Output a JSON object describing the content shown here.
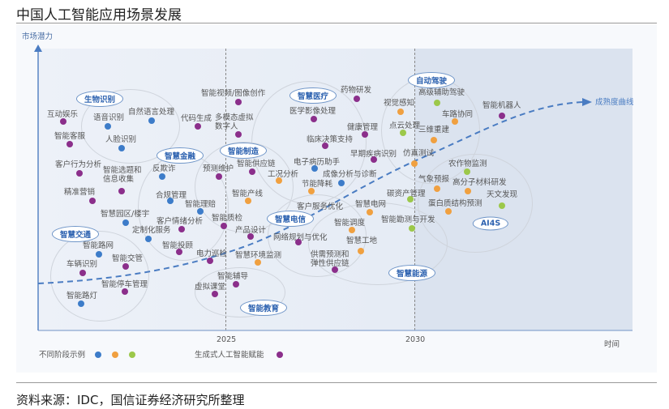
{
  "title": "中国人工智能应用场景发展",
  "source": "资料来源：IDC，国信证券经济研究所整理",
  "axes": {
    "y_label": "市场潜力",
    "x_label": "时间",
    "ticks": [
      "2025",
      "2030"
    ],
    "curve_label": "成熟度曲线"
  },
  "colors": {
    "blue": "#3d7cc9",
    "orange": "#f0a040",
    "green": "#9cc84a",
    "purple": "#8b2f8b",
    "curve": "#4a7cc2"
  },
  "legend": {
    "stages_label": "不同阶段示例",
    "stage_colors": [
      "blue",
      "orange",
      "green"
    ],
    "genai_label": "生成式人工智能赋能",
    "genai_color": "purple"
  },
  "categories": [
    "生物识别",
    "智慧金融",
    "智能制造",
    "智慧医疗",
    "自动驾驶",
    "智慧电信",
    "智慧交通",
    "智能教育",
    "智慧能源",
    "AI4S"
  ],
  "items": [
    {
      "label": "互动娱乐",
      "color": "purple"
    },
    {
      "label": "语音识别",
      "color": "blue"
    },
    {
      "label": "自然语言处理",
      "color": "blue"
    },
    {
      "label": "代码生成",
      "color": "purple"
    },
    {
      "label": "智能客服",
      "color": "purple"
    },
    {
      "label": "人脸识别",
      "color": "blue"
    },
    {
      "label": "客户行为分析",
      "color": "purple"
    },
    {
      "label": "智能选题和\n信息收集",
      "color": "purple"
    },
    {
      "label": "反欺诈",
      "color": "blue"
    },
    {
      "label": "预测维护",
      "color": "purple"
    },
    {
      "label": "智能视频/图像创作",
      "color": "purple"
    },
    {
      "label": "多模态虚拟\n数字人",
      "color": "purple"
    },
    {
      "label": "精准营销",
      "color": "purple"
    },
    {
      "label": "合规管理",
      "color": "blue"
    },
    {
      "label": "智能理赔",
      "color": "blue"
    },
    {
      "label": "智慧园区/楼宇",
      "color": "blue"
    },
    {
      "label": "客户情绪分析",
      "color": "purple"
    },
    {
      "label": "定制化服务",
      "color": "blue"
    },
    {
      "label": "智能投顾",
      "color": "purple"
    },
    {
      "label": "智能质检",
      "color": "purple"
    },
    {
      "label": "产品设计",
      "color": "purple"
    },
    {
      "label": "电力巡检",
      "color": "purple"
    },
    {
      "label": "智慧环境监测",
      "color": "orange"
    },
    {
      "label": "网络规划与优化",
      "color": "purple"
    },
    {
      "label": "智能路网",
      "color": "blue"
    },
    {
      "label": "智能交管",
      "color": "purple"
    },
    {
      "label": "车辆识别",
      "color": "purple"
    },
    {
      "label": "智能停车管理",
      "color": "purple"
    },
    {
      "label": "智能路灯",
      "color": "blue"
    },
    {
      "label": "智能辅导",
      "color": "purple"
    },
    {
      "label": "虚拟课堂",
      "color": "purple"
    },
    {
      "label": "药物研发",
      "color": "purple"
    },
    {
      "label": "医学影像处理",
      "color": "purple"
    },
    {
      "label": "健康管理",
      "color": "purple"
    },
    {
      "label": "临床决策支持",
      "color": "purple"
    },
    {
      "label": "早期疾病识别",
      "color": "purple"
    },
    {
      "label": "电子病历助手",
      "color": "blue"
    },
    {
      "label": "成像分析与诊断",
      "color": "blue"
    },
    {
      "label": "智能供应链",
      "color": "purple"
    },
    {
      "label": "工况分析",
      "color": "orange"
    },
    {
      "label": "节能降耗",
      "color": "orange"
    },
    {
      "label": "智能产线",
      "color": "orange"
    },
    {
      "label": "客户服务优化",
      "color": null
    },
    {
      "label": "智慧电网",
      "color": "orange"
    },
    {
      "label": "智能调度",
      "color": "orange"
    },
    {
      "label": "智能勘测与开发",
      "color": "green"
    },
    {
      "label": "智慧工地",
      "color": "orange"
    },
    {
      "label": "供需预测和\n弹性供应链",
      "color": "purple"
    },
    {
      "label": "视觉感知",
      "color": "orange"
    },
    {
      "label": "点云处理",
      "color": "green"
    },
    {
      "label": "仿真测试",
      "color": "orange"
    },
    {
      "label": "碳资产管理",
      "color": "green"
    },
    {
      "label": "高级辅助驾驶",
      "color": "green"
    },
    {
      "label": "车路协同",
      "color": "orange"
    },
    {
      "label": "三维重建",
      "color": "orange"
    },
    {
      "label": "智能机器人",
      "color": "purple"
    },
    {
      "label": "农作物监测",
      "color": "green"
    },
    {
      "label": "气象预报",
      "color": "orange"
    },
    {
      "label": "高分子材料研发",
      "color": "orange"
    },
    {
      "label": "天文发现",
      "color": "green"
    },
    {
      "label": "蛋白质结构预测",
      "color": "orange"
    }
  ]
}
